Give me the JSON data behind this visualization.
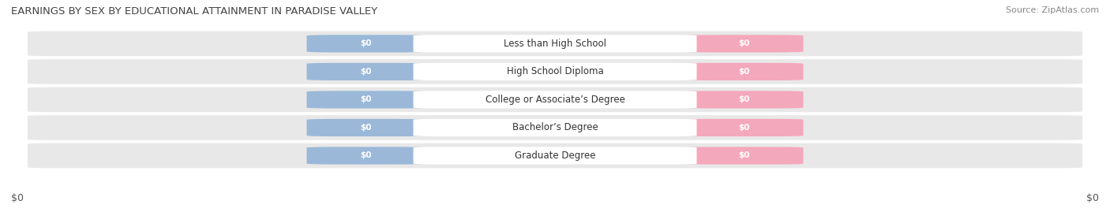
{
  "title": "EARNINGS BY SEX BY EDUCATIONAL ATTAINMENT IN PARADISE VALLEY",
  "source": "Source: ZipAtlas.com",
  "categories": [
    "Less than High School",
    "High School Diploma",
    "College or Associate’s Degree",
    "Bachelor’s Degree",
    "Graduate Degree"
  ],
  "male_values": [
    0,
    0,
    0,
    0,
    0
  ],
  "female_values": [
    0,
    0,
    0,
    0,
    0
  ],
  "male_color": "#9bb8d9",
  "female_color": "#f4a8bc",
  "row_bg_color": "#e8e8e8",
  "row_bg_light": "#f0f0f0",
  "label_bg_color": "#ffffff",
  "xlabel_left": "$0",
  "xlabel_right": "$0",
  "bar_height": 0.62,
  "title_fontsize": 9.5,
  "label_fontsize": 8.5,
  "val_fontsize": 7.5,
  "tick_fontsize": 9,
  "source_fontsize": 8,
  "legend_fontsize": 9
}
